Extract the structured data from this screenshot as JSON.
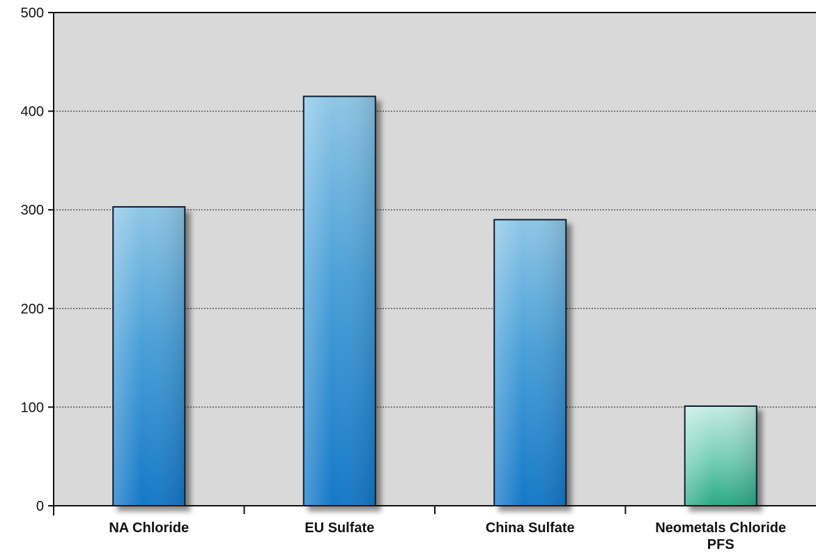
{
  "chart_data": {
    "type": "bar",
    "title": "",
    "xlabel": "",
    "ylabel": "",
    "ylim": [
      0,
      500
    ],
    "yticks": [
      "0",
      "100",
      "200",
      "300",
      "400",
      "500"
    ],
    "grid": true,
    "categories": [
      {
        "lines": [
          "NA Chloride"
        ]
      },
      {
        "lines": [
          "EU Sulfate"
        ]
      },
      {
        "lines": [
          "China Sulfate"
        ]
      },
      {
        "lines": [
          "Neometals Chloride",
          "PFS"
        ]
      }
    ],
    "values": [
      303,
      415,
      290,
      101
    ],
    "colors": {
      "bar_blue_top": "#8ec6e6",
      "bar_blue_bottom": "#1578c8",
      "bar_green_top": "#c4ece3",
      "bar_green_bottom": "#2aa886",
      "plot_background": "#d9d9d9"
    },
    "highlight_index": 3
  }
}
